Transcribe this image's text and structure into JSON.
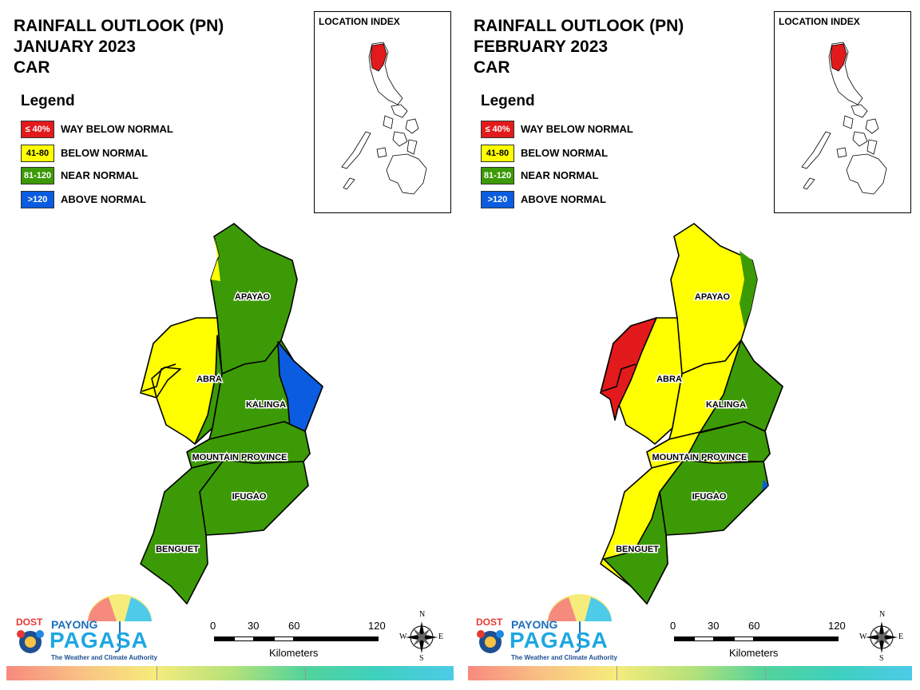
{
  "panels": [
    {
      "title_lines": [
        "RAINFALL OUTLOOK (PN)",
        "JANUARY 2023",
        "CAR"
      ],
      "provinces": {
        "apayao": "APAYAO",
        "abra": "ABRA",
        "kalinga": "KALINGA",
        "mountain_province": "MOUNTAIN PROVINCE",
        "ifugao": "IFUGAO",
        "benguet": "BENGUET"
      }
    },
    {
      "title_lines": [
        "RAINFALL OUTLOOK (PN)",
        "FEBRUARY 2023",
        "CAR"
      ],
      "provinces": {
        "apayao": "APAYAO",
        "abra": "ABRA",
        "kalinga": "KALINGA",
        "mountain_province": "MOUNTAIN PROVINCE",
        "ifugao": "IFUGAO",
        "benguet": "BENGUET"
      }
    }
  ],
  "legend": {
    "title": "Legend",
    "items": [
      {
        "code": "≤ 40%",
        "label": "WAY BELOW NORMAL",
        "color": "#e31a1c",
        "text_color": "#ffffff"
      },
      {
        "code": "41-80",
        "label": "BELOW NORMAL",
        "color": "#ffff00",
        "text_color": "#000000"
      },
      {
        "code": "81-120",
        "label": "NEAR NORMAL",
        "color": "#3c9a06",
        "text_color": "#ffffff"
      },
      {
        "code": ">120",
        "label": "ABOVE NORMAL",
        "color": "#0b5ce0",
        "text_color": "#ffffff"
      }
    ]
  },
  "location_index": {
    "title": "LOCATION INDEX"
  },
  "scale_bar": {
    "ticks": [
      "0",
      "30",
      "60",
      "120"
    ],
    "caption": "Kilometers"
  },
  "compass": {
    "n": "N",
    "s": "S",
    "e": "E",
    "w": "W"
  },
  "logo": {
    "dost": "DOST",
    "payong": "PAYONG",
    "pagasa": "PAGASA",
    "tagline": "The Weather and Climate Authority"
  },
  "colors": {
    "yellow": "#ffff00",
    "green": "#3c9a06",
    "blue": "#0b5ce0",
    "red": "#e31a1c"
  }
}
